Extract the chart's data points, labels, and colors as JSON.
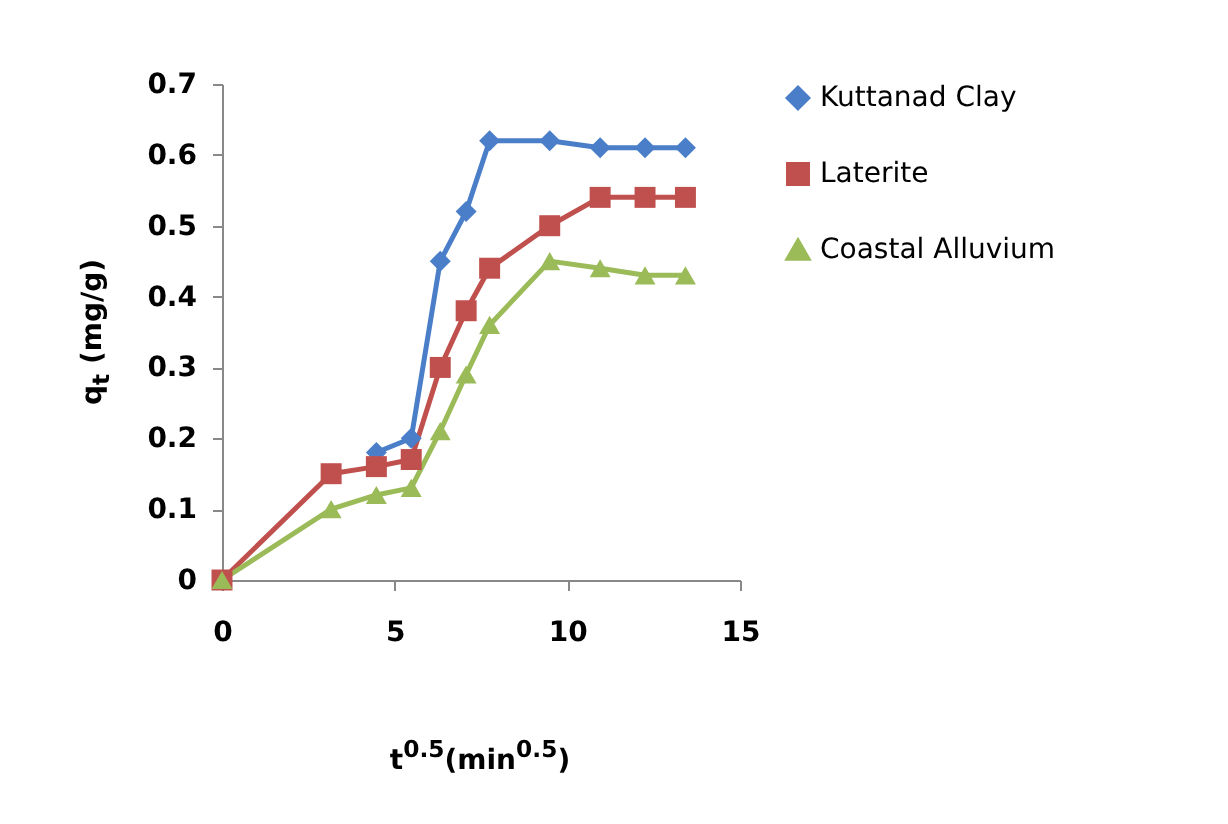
{
  "chart_data": {
    "type": "line",
    "xlabel": "t$^{0.5}$(min$^{0.5}$)",
    "ylabel": "q$_{t}$ (mg/g)",
    "x": [
      0,
      3.16,
      4.47,
      5.48,
      6.32,
      7.07,
      7.75,
      9.49,
      10.95,
      12.25,
      13.42
    ],
    "xlim": [
      0,
      15
    ],
    "xticks": [
      0,
      5,
      10,
      15
    ],
    "ylim": [
      0,
      0.7
    ],
    "yticks": [
      0,
      0.1,
      0.2,
      0.3,
      0.4,
      0.5,
      0.6,
      0.7
    ],
    "grid": false,
    "legend": "right",
    "line_style": "solid",
    "series": [
      {
        "name": "Kuttanad Clay",
        "color": "#4a7ec8",
        "marker": "diamond",
        "values": [
          null,
          null,
          0.18,
          0.2,
          0.45,
          0.52,
          0.62,
          0.62,
          0.61,
          0.61,
          0.61
        ]
      },
      {
        "name": "Laterite",
        "color": "#c0504d",
        "marker": "square",
        "values": [
          0,
          0.15,
          0.16,
          0.17,
          0.3,
          0.38,
          0.44,
          0.5,
          0.54,
          0.54,
          0.54
        ]
      },
      {
        "name": "Coastal Alluvium",
        "color": "#9bbb59",
        "marker": "triangle",
        "values": [
          0,
          0.1,
          0.12,
          0.13,
          0.21,
          0.29,
          0.36,
          0.45,
          0.44,
          0.43,
          0.43
        ]
      }
    ]
  }
}
